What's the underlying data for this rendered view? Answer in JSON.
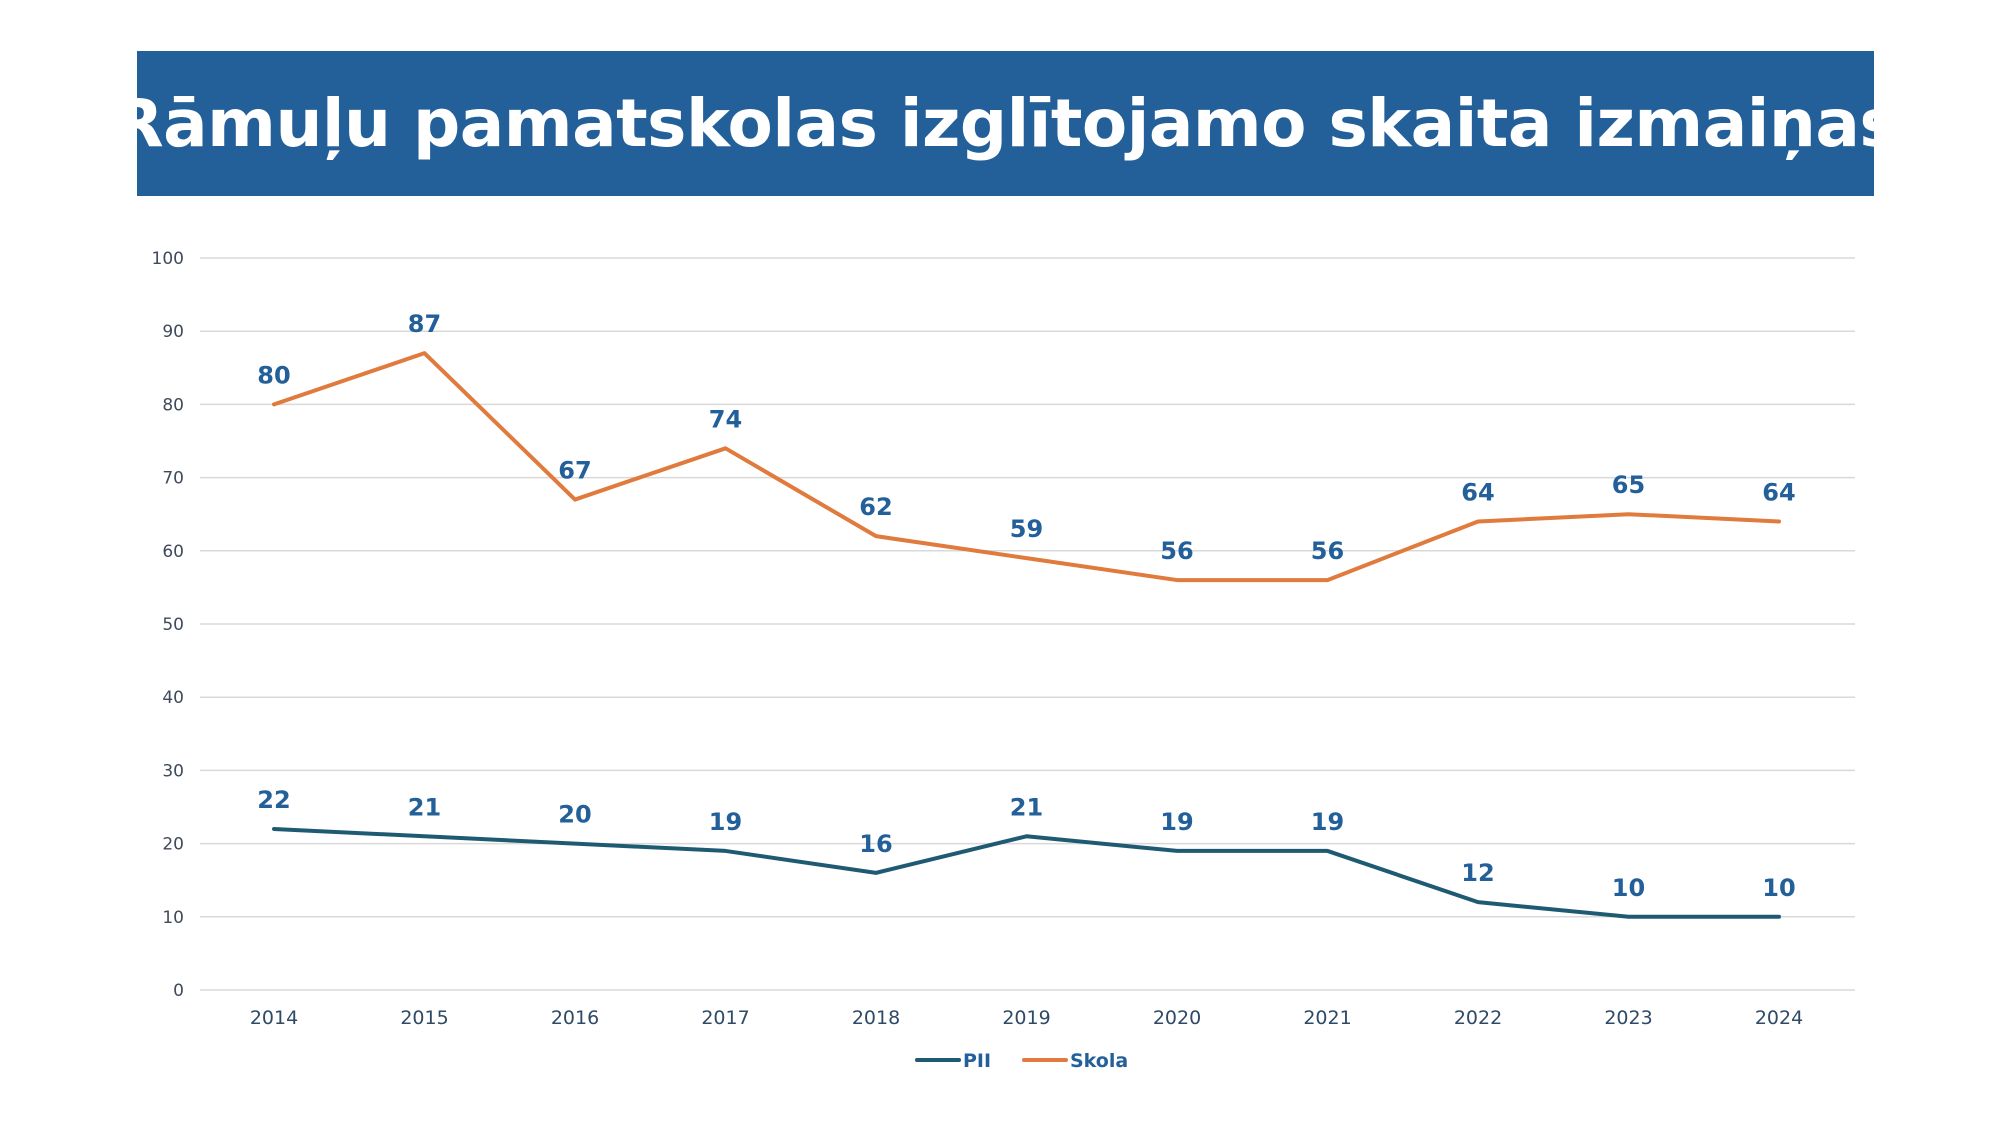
{
  "title": "Rāmuļu pamatskolas izglītojamo skaita izmaiņas",
  "colors": {
    "banner": "#23609a",
    "pii": "#1f5a73",
    "skola": "#e07a3d",
    "label": "#23609a",
    "grid": "#d9d9d9"
  },
  "chart_data": {
    "type": "line",
    "title": "Rāmuļu pamatskolas izglītojamo skaita izmaiņas",
    "xlabel": "",
    "ylabel": "",
    "categories": [
      "2014",
      "2015",
      "2016",
      "2017",
      "2018",
      "2019",
      "2020",
      "2021",
      "2022",
      "2023",
      "2024"
    ],
    "series": [
      {
        "name": "PII",
        "color": "#1f5a73",
        "values": [
          22,
          21,
          20,
          19,
          16,
          21,
          19,
          19,
          12,
          10,
          10
        ]
      },
      {
        "name": "Skola",
        "color": "#e07a3d",
        "values": [
          80,
          87,
          67,
          74,
          62,
          59,
          56,
          56,
          64,
          65,
          64
        ]
      }
    ],
    "ylim": [
      0,
      100
    ],
    "yticks": [
      0,
      10,
      20,
      30,
      40,
      50,
      60,
      70,
      80,
      90,
      100
    ],
    "grid": true,
    "legend": "bottom-center",
    "data_labels": true
  }
}
